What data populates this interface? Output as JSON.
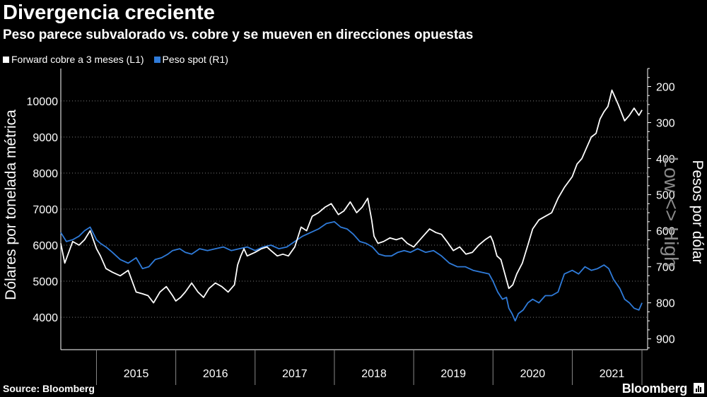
{
  "header": {
    "title": "Divergencia creciente",
    "subtitle": "Peso parece subvalorado vs. cobre y se mueven en direcciones opuestas"
  },
  "footer": {
    "source": "Source: Bloomberg",
    "brand": "Bloomberg"
  },
  "colors": {
    "background": "#000000",
    "copper": "#ffffff",
    "peso": "#2f7bd9",
    "grid": "#7a7a7a"
  },
  "chart_data": {
    "type": "line",
    "legend_placement": "top-left",
    "grid": true,
    "x_tick_labels": [
      "2015",
      "2016",
      "2017",
      "2018",
      "2019",
      "2020",
      "2021"
    ],
    "xlim": [
      2014.55,
      2021.95
    ],
    "y_left": {
      "label": "Dólares por tonelada métrica",
      "ticks": [
        4000,
        5000,
        6000,
        7000,
        8000,
        9000,
        10000
      ],
      "lim": [
        3100,
        10900
      ]
    },
    "y_right": {
      "label": "Pesos por dólar",
      "annotation": "Low <> High",
      "inverted": true,
      "ticks": [
        200,
        300,
        400,
        500,
        600,
        700,
        800,
        900
      ],
      "lim": [
        150,
        930
      ]
    },
    "series": [
      {
        "name": "Forward cobre a 3 meses (L1)",
        "axis": "left",
        "color": "#ffffff",
        "x": [
          2014.55,
          2014.6,
          2014.65,
          2014.7,
          2014.78,
          2014.85,
          2014.92,
          2015.0,
          2015.05,
          2015.12,
          2015.2,
          2015.3,
          2015.4,
          2015.5,
          2015.58,
          2015.65,
          2015.72,
          2015.8,
          2015.88,
          2015.96,
          2016.0,
          2016.06,
          2016.12,
          2016.2,
          2016.28,
          2016.35,
          2016.42,
          2016.5,
          2016.58,
          2016.66,
          2016.74,
          2016.78,
          2016.82,
          2016.86,
          2016.9,
          2017.0,
          2017.08,
          2017.15,
          2017.2,
          2017.28,
          2017.35,
          2017.42,
          2017.5,
          2017.58,
          2017.65,
          2017.72,
          2017.8,
          2017.88,
          2017.96,
          2018.05,
          2018.12,
          2018.2,
          2018.28,
          2018.35,
          2018.42,
          2018.47,
          2018.5,
          2018.55,
          2018.62,
          2018.7,
          2018.78,
          2018.85,
          2018.92,
          2019.0,
          2019.1,
          2019.2,
          2019.28,
          2019.35,
          2019.42,
          2019.5,
          2019.58,
          2019.66,
          2019.74,
          2019.82,
          2019.9,
          2019.97,
          2020.0,
          2020.05,
          2020.1,
          2020.15,
          2020.2,
          2020.25,
          2020.3,
          2020.37,
          2020.44,
          2020.5,
          2020.58,
          2020.66,
          2020.74,
          2020.82,
          2020.9,
          2021.0,
          2021.06,
          2021.12,
          2021.18,
          2021.24,
          2021.3,
          2021.35,
          2021.4,
          2021.45,
          2021.5,
          2021.58,
          2021.66,
          2021.72,
          2021.78,
          2021.84,
          2021.88
        ],
        "values": [
          6050,
          5500,
          5800,
          6100,
          6000,
          6150,
          6400,
          5900,
          5700,
          5350,
          5250,
          5150,
          5300,
          4700,
          4650,
          4600,
          4400,
          4700,
          4850,
          4600,
          4450,
          4550,
          4700,
          4950,
          4700,
          4550,
          4800,
          4950,
          4850,
          4700,
          4900,
          5450,
          5700,
          5900,
          5700,
          5800,
          5900,
          5950,
          5850,
          5700,
          5750,
          5700,
          5950,
          6500,
          6400,
          6800,
          6900,
          7050,
          7150,
          6850,
          6950,
          7200,
          6900,
          7050,
          7300,
          6700,
          6250,
          6050,
          6100,
          6200,
          6150,
          6200,
          6050,
          5950,
          6200,
          6450,
          6350,
          6300,
          6100,
          5850,
          5950,
          5750,
          5800,
          6000,
          6150,
          6250,
          6100,
          5700,
          5600,
          5200,
          4800,
          4900,
          5200,
          5500,
          6000,
          6450,
          6700,
          6800,
          6900,
          7300,
          7600,
          7900,
          8250,
          8400,
          8700,
          9000,
          9100,
          9500,
          9700,
          9850,
          10300,
          9900,
          9450,
          9600,
          9800,
          9600,
          9750
        ]
      },
      {
        "name": "Peso spot (R1)",
        "axis": "right",
        "color": "#2f7bd9",
        "x": [
          2014.55,
          2014.62,
          2014.7,
          2014.78,
          2014.85,
          2014.92,
          2015.0,
          2015.05,
          2015.12,
          2015.2,
          2015.3,
          2015.4,
          2015.5,
          2015.58,
          2015.66,
          2015.74,
          2015.82,
          2015.9,
          2015.96,
          2016.05,
          2016.12,
          2016.2,
          2016.3,
          2016.4,
          2016.5,
          2016.6,
          2016.7,
          2016.8,
          2016.9,
          2017.0,
          2017.1,
          2017.2,
          2017.3,
          2017.4,
          2017.5,
          2017.6,
          2017.7,
          2017.8,
          2017.9,
          2018.0,
          2018.08,
          2018.16,
          2018.24,
          2018.32,
          2018.4,
          2018.48,
          2018.56,
          2018.64,
          2018.72,
          2018.8,
          2018.88,
          2018.96,
          2019.05,
          2019.15,
          2019.25,
          2019.35,
          2019.45,
          2019.55,
          2019.65,
          2019.75,
          2019.85,
          2019.95,
          2020.0,
          2020.06,
          2020.12,
          2020.17,
          2020.2,
          2020.24,
          2020.28,
          2020.32,
          2020.38,
          2020.44,
          2020.5,
          2020.58,
          2020.66,
          2020.74,
          2020.82,
          2020.9,
          2021.0,
          2021.08,
          2021.16,
          2021.24,
          2021.32,
          2021.4,
          2021.46,
          2021.52,
          2021.6,
          2021.66,
          2021.72,
          2021.78,
          2021.84,
          2021.88
        ],
        "values": [
          605,
          630,
          625,
          615,
          600,
          590,
          625,
          635,
          645,
          660,
          680,
          690,
          675,
          705,
          700,
          680,
          675,
          665,
          655,
          650,
          660,
          665,
          650,
          655,
          650,
          645,
          655,
          650,
          645,
          655,
          645,
          640,
          650,
          645,
          630,
          615,
          605,
          595,
          580,
          575,
          590,
          595,
          610,
          630,
          635,
          645,
          665,
          670,
          670,
          660,
          655,
          660,
          650,
          660,
          655,
          670,
          690,
          700,
          700,
          710,
          715,
          720,
          740,
          770,
          790,
          785,
          815,
          830,
          850,
          830,
          820,
          800,
          790,
          800,
          780,
          780,
          770,
          720,
          710,
          720,
          700,
          710,
          705,
          695,
          705,
          735,
          760,
          790,
          800,
          815,
          820,
          800
        ]
      }
    ]
  }
}
